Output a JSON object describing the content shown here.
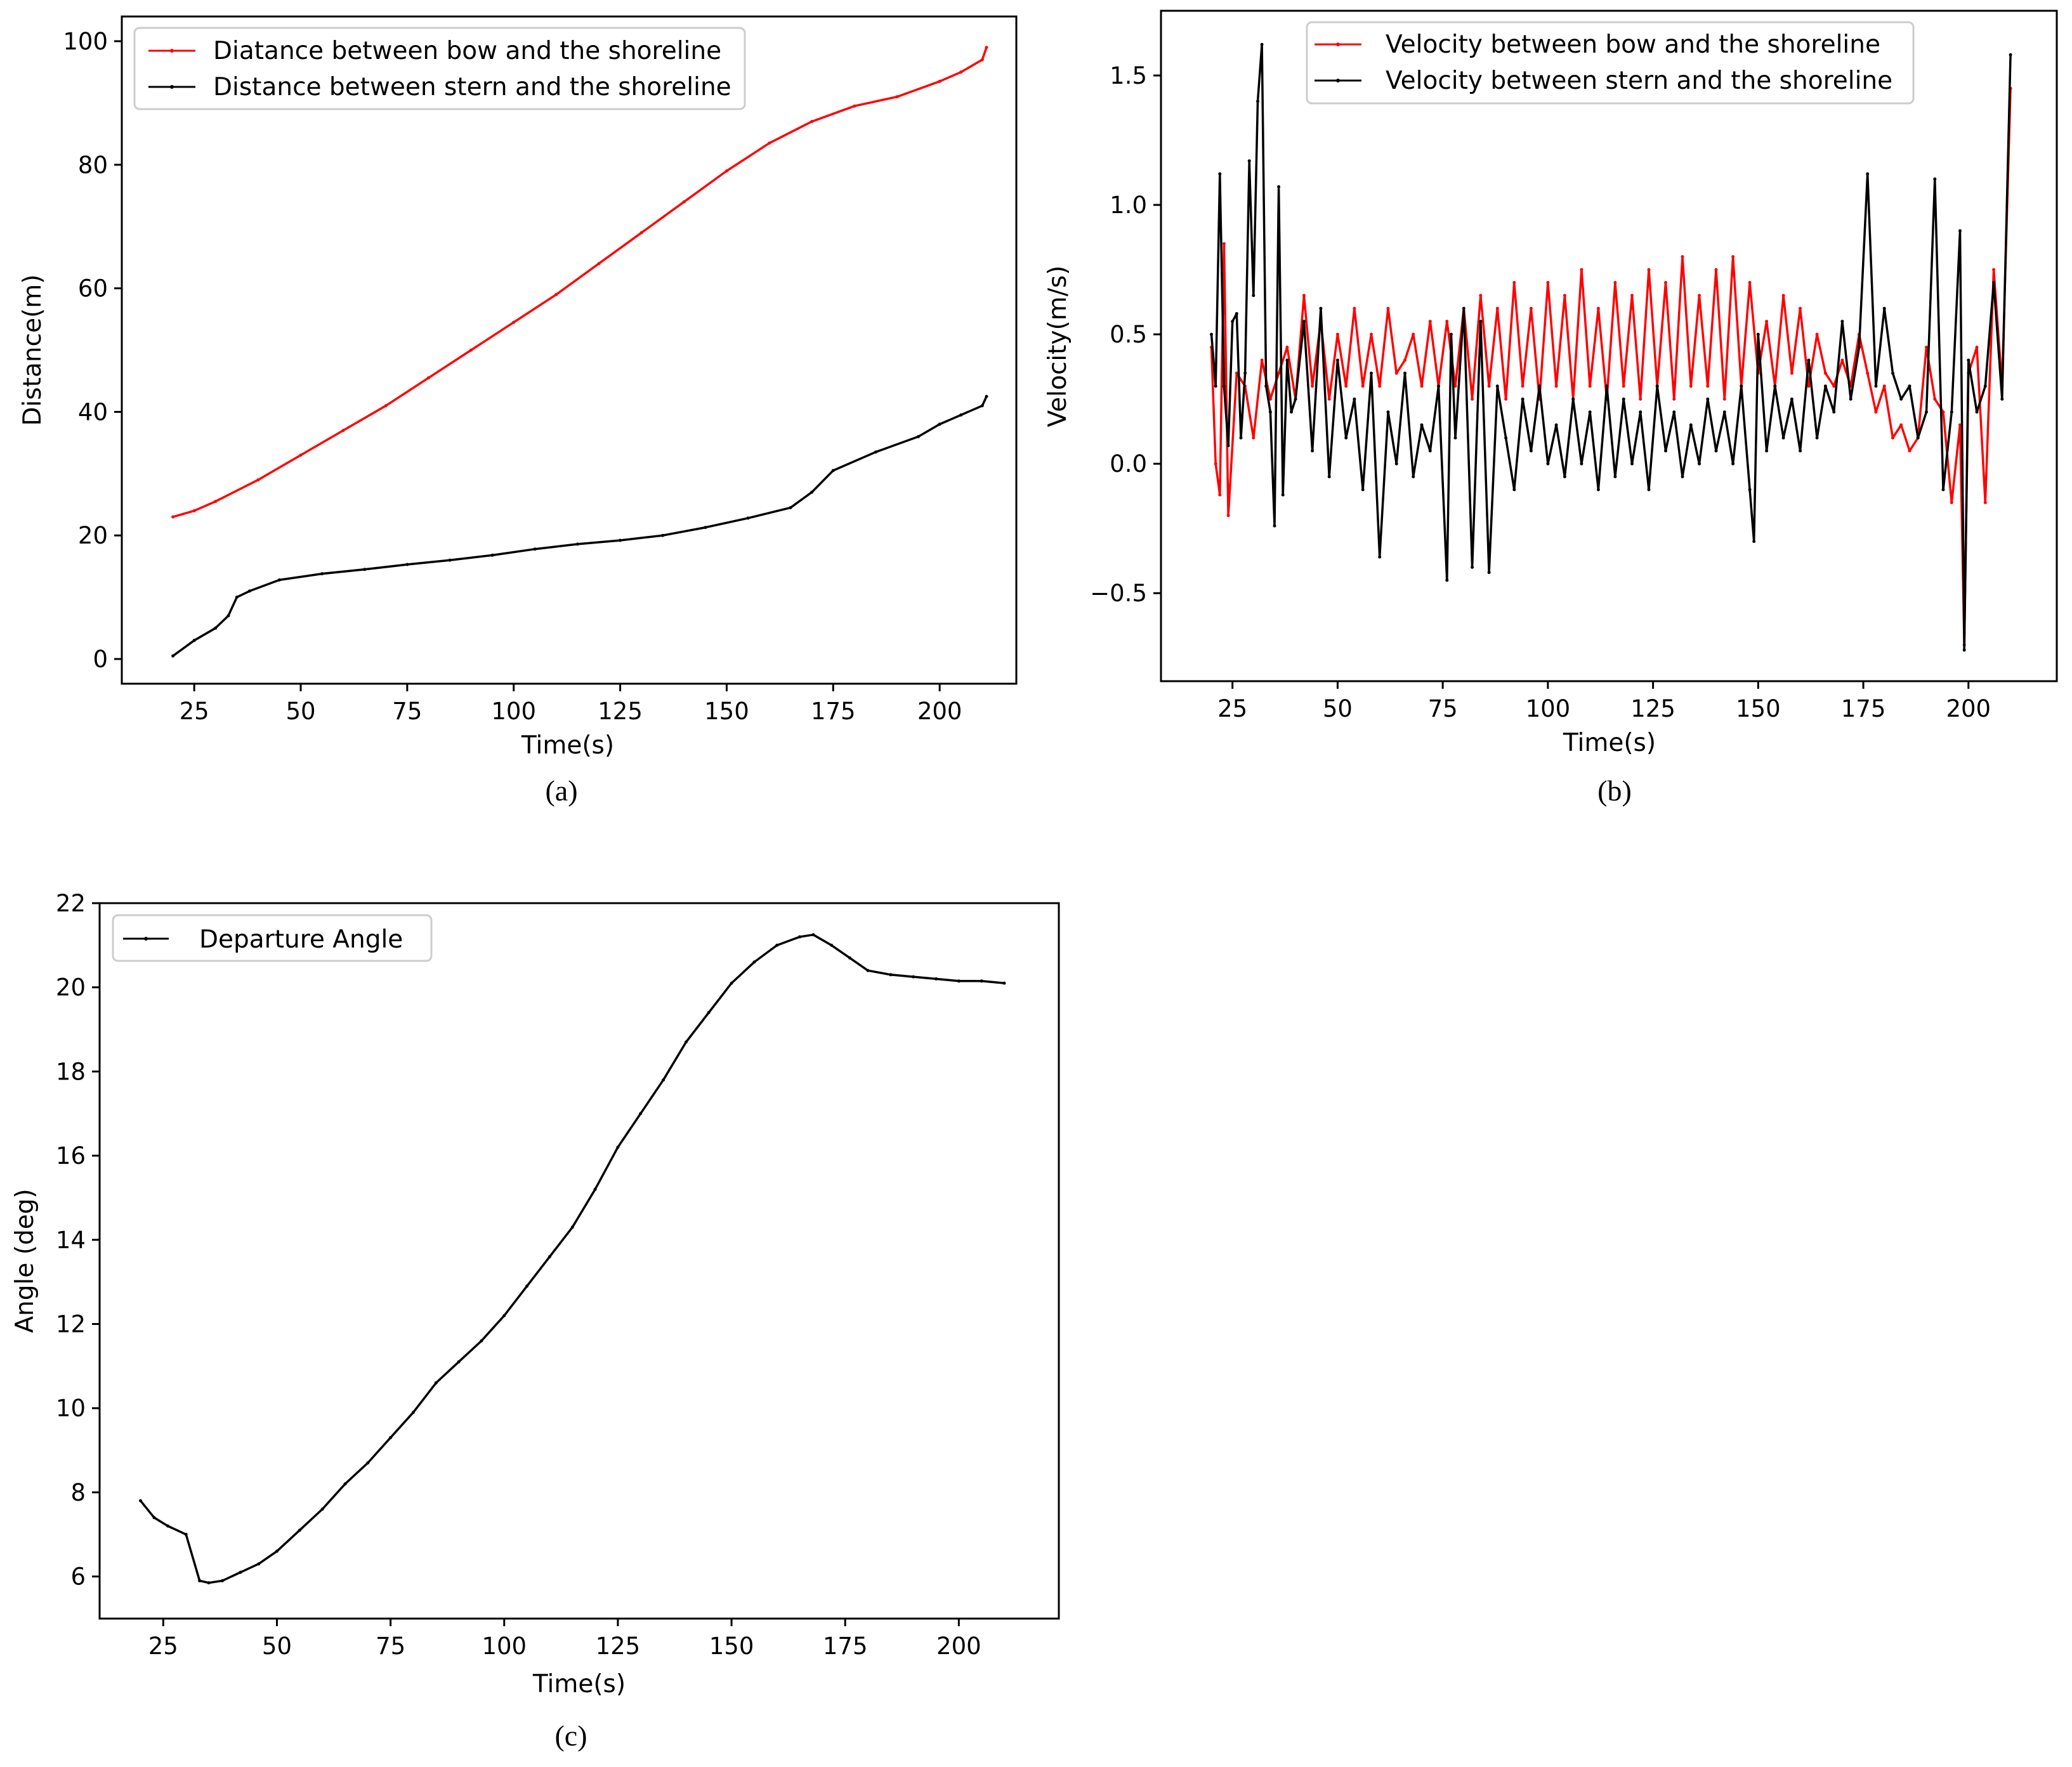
{
  "chart_data": [
    {
      "id": "a",
      "type": "line",
      "caption": "(a)",
      "xlabel": "Time(s)",
      "ylabel": "Distance(m)",
      "xlim": [
        8,
        218
      ],
      "ylim": [
        -4,
        104
      ],
      "xticks": [
        25,
        50,
        75,
        100,
        125,
        150,
        175,
        200
      ],
      "yticks": [
        0,
        20,
        40,
        60,
        80,
        100
      ],
      "legend_position": "upper-left",
      "series": [
        {
          "name": "Diatance between bow and the shoreline",
          "color": "#ff0000",
          "x": [
            20,
            25,
            30,
            40,
            50,
            60,
            70,
            80,
            90,
            100,
            110,
            120,
            130,
            140,
            150,
            160,
            170,
            180,
            190,
            200,
            205,
            210,
            211
          ],
          "y": [
            23,
            24,
            25.5,
            29,
            33,
            37,
            41,
            45.5,
            50,
            54.5,
            59,
            64,
            69,
            74,
            79,
            83.5,
            87,
            89.5,
            91,
            93.5,
            95,
            97,
            99
          ]
        },
        {
          "name": "Distance between stern and the shoreline",
          "color": "#000000",
          "x": [
            20,
            25,
            30,
            33,
            35,
            38,
            45,
            55,
            65,
            75,
            85,
            95,
            105,
            115,
            125,
            135,
            145,
            155,
            165,
            170,
            175,
            185,
            195,
            200,
            205,
            210,
            211
          ],
          "y": [
            0.5,
            3,
            5,
            7,
            10,
            11,
            12.8,
            13.8,
            14.5,
            15.3,
            16,
            16.8,
            17.8,
            18.6,
            19.2,
            20,
            21.3,
            22.8,
            24.5,
            27,
            30.5,
            33.5,
            36,
            38,
            39.5,
            41,
            42.5
          ]
        }
      ]
    },
    {
      "id": "b",
      "type": "line",
      "caption": "(b)",
      "xlabel": "Time(s)",
      "ylabel": "Velocity(m/s)",
      "xlim": [
        8,
        221
      ],
      "ylim": [
        -0.84,
        1.75
      ],
      "xticks": [
        25,
        50,
        75,
        100,
        125,
        150,
        175,
        200
      ],
      "yticks": [
        -0.5,
        0.0,
        0.5,
        1.0,
        1.5
      ],
      "ytick_labels": [
        "−0.5",
        "0.0",
        "0.5",
        "1.0",
        "1.5"
      ],
      "legend_position": "upper-right",
      "series": [
        {
          "name": "Velocity between bow and the shoreline",
          "color": "#ff0000",
          "x": [
            20,
            21,
            22,
            23,
            24,
            26,
            28,
            30,
            32,
            34,
            36,
            38,
            40,
            42,
            44,
            46,
            48,
            50,
            52,
            54,
            56,
            58,
            60,
            62,
            64,
            66,
            68,
            70,
            72,
            74,
            76,
            78,
            80,
            82,
            84,
            86,
            88,
            90,
            92,
            94,
            96,
            98,
            100,
            102,
            104,
            106,
            108,
            110,
            112,
            114,
            116,
            118,
            120,
            122,
            124,
            126,
            128,
            130,
            132,
            134,
            136,
            138,
            140,
            142,
            144,
            146,
            148,
            150,
            152,
            154,
            156,
            158,
            160,
            162,
            164,
            166,
            168,
            170,
            172,
            174,
            176,
            178,
            180,
            182,
            184,
            186,
            188,
            190,
            192,
            194,
            196,
            198,
            199,
            200,
            202,
            204,
            206,
            208,
            210
          ],
          "y": [
            0.45,
            0.0,
            -0.12,
            0.85,
            -0.2,
            0.35,
            0.3,
            0.1,
            0.4,
            0.25,
            0.35,
            0.45,
            0.25,
            0.65,
            0.3,
            0.55,
            0.25,
            0.5,
            0.3,
            0.6,
            0.3,
            0.5,
            0.3,
            0.6,
            0.35,
            0.4,
            0.5,
            0.3,
            0.55,
            0.3,
            0.55,
            0.3,
            0.6,
            0.25,
            0.65,
            0.3,
            0.6,
            0.25,
            0.7,
            0.3,
            0.6,
            0.25,
            0.7,
            0.3,
            0.65,
            0.25,
            0.75,
            0.3,
            0.6,
            0.25,
            0.7,
            0.3,
            0.65,
            0.25,
            0.75,
            0.3,
            0.7,
            0.25,
            0.8,
            0.3,
            0.65,
            0.3,
            0.75,
            0.25,
            0.8,
            0.3,
            0.7,
            0.35,
            0.55,
            0.3,
            0.65,
            0.35,
            0.6,
            0.3,
            0.5,
            0.35,
            0.3,
            0.4,
            0.3,
            0.5,
            0.35,
            0.2,
            0.3,
            0.1,
            0.15,
            0.05,
            0.1,
            0.45,
            0.25,
            0.2,
            -0.15,
            0.15,
            -0.7,
            0.35,
            0.45,
            -0.15,
            0.75,
            0.3,
            1.45
          ]
        },
        {
          "name": "Velocity between stern and the shoreline",
          "color": "#000000",
          "x": [
            20,
            21,
            22,
            23,
            24,
            25,
            26,
            27,
            28,
            29,
            30,
            31,
            32,
            33,
            34,
            35,
            36,
            37,
            38,
            39,
            40,
            42,
            44,
            46,
            48,
            50,
            52,
            54,
            56,
            58,
            60,
            62,
            64,
            66,
            68,
            70,
            72,
            74,
            76,
            77,
            78,
            80,
            82,
            84,
            86,
            88,
            90,
            92,
            94,
            96,
            98,
            100,
            102,
            104,
            106,
            108,
            110,
            112,
            114,
            116,
            118,
            120,
            122,
            124,
            126,
            128,
            130,
            132,
            134,
            136,
            138,
            140,
            142,
            144,
            146,
            148,
            149,
            150,
            152,
            154,
            156,
            158,
            160,
            162,
            164,
            166,
            168,
            170,
            172,
            174,
            176,
            178,
            180,
            182,
            184,
            186,
            188,
            190,
            192,
            194,
            196,
            198,
            199,
            200,
            202,
            204,
            206,
            208,
            210
          ],
          "y": [
            0.5,
            0.3,
            1.12,
            0.3,
            0.07,
            0.55,
            0.58,
            0.1,
            0.35,
            1.17,
            0.65,
            1.4,
            1.62,
            0.3,
            0.2,
            -0.24,
            1.07,
            -0.12,
            0.4,
            0.2,
            0.25,
            0.55,
            0.05,
            0.6,
            -0.05,
            0.4,
            0.1,
            0.25,
            -0.1,
            0.35,
            -0.36,
            0.2,
            0.0,
            0.35,
            -0.05,
            0.15,
            0.05,
            0.3,
            -0.45,
            0.5,
            0.1,
            0.6,
            -0.4,
            0.55,
            -0.42,
            0.3,
            0.1,
            -0.1,
            0.25,
            0.05,
            0.3,
            0.0,
            0.15,
            -0.05,
            0.25,
            0.0,
            0.2,
            -0.1,
            0.3,
            -0.05,
            0.25,
            0.0,
            0.2,
            -0.1,
            0.3,
            0.05,
            0.2,
            -0.05,
            0.15,
            0.0,
            0.25,
            0.05,
            0.2,
            0.0,
            0.3,
            -0.1,
            -0.3,
            0.5,
            0.05,
            0.3,
            0.1,
            0.25,
            0.05,
            0.4,
            0.1,
            0.3,
            0.2,
            0.55,
            0.25,
            0.45,
            1.12,
            0.3,
            0.6,
            0.35,
            0.25,
            0.3,
            0.1,
            0.2,
            1.1,
            -0.1,
            0.2,
            0.9,
            -0.72,
            0.4,
            0.2,
            0.3,
            0.7,
            0.25,
            1.58
          ]
        }
      ]
    },
    {
      "id": "c",
      "type": "line",
      "caption": "(c)",
      "xlabel": "Time(s)",
      "ylabel": "Angle (deg)",
      "xlim": [
        11,
        222
      ],
      "ylim": [
        5,
        22
      ],
      "xticks": [
        25,
        50,
        75,
        100,
        125,
        150,
        175,
        200
      ],
      "yticks": [
        6,
        8,
        10,
        12,
        14,
        16,
        18,
        20,
        22
      ],
      "legend_position": "upper-left",
      "series": [
        {
          "name": "Departure Angle",
          "color": "#000000",
          "x": [
            20,
            23,
            26,
            30,
            33,
            35,
            38,
            42,
            46,
            50,
            55,
            60,
            65,
            70,
            75,
            80,
            85,
            90,
            95,
            100,
            105,
            110,
            115,
            120,
            125,
            130,
            135,
            140,
            145,
            150,
            155,
            160,
            165,
            168,
            172,
            176,
            180,
            185,
            190,
            195,
            200,
            205,
            210
          ],
          "y": [
            7.8,
            7.4,
            7.2,
            7.0,
            5.9,
            5.85,
            5.9,
            6.1,
            6.3,
            6.6,
            7.1,
            7.6,
            8.2,
            8.7,
            9.3,
            9.9,
            10.6,
            11.1,
            11.6,
            12.2,
            12.9,
            13.6,
            14.3,
            15.2,
            16.2,
            17.0,
            17.8,
            18.7,
            19.4,
            20.1,
            20.6,
            21.0,
            21.2,
            21.25,
            21.0,
            20.7,
            20.4,
            20.3,
            20.25,
            20.2,
            20.15,
            20.15,
            20.1
          ]
        }
      ]
    }
  ]
}
